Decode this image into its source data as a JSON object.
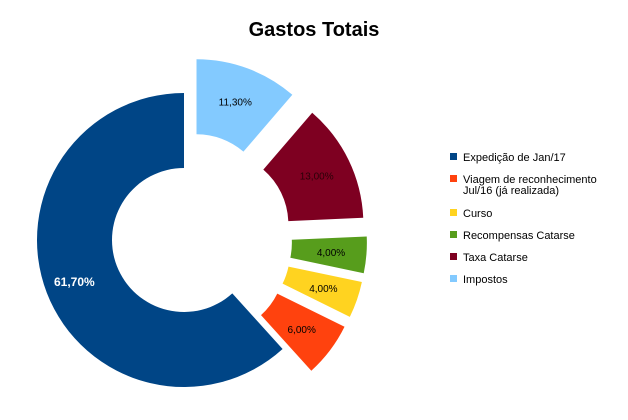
{
  "chart_data": {
    "type": "pie",
    "variant": "exploded-donut",
    "title": "Gastos Totais",
    "slices": [
      {
        "name": "Impostos",
        "value": 11.3,
        "label": "11,30%",
        "color": "#83caff"
      },
      {
        "name": "Taxa Catarse",
        "value": 13.0,
        "label": "13,00%",
        "color": "#7e0021"
      },
      {
        "name": "Recompensas Catarse",
        "value": 4.0,
        "label": "4,00%",
        "color": "#579d1c"
      },
      {
        "name": "Curso",
        "value": 4.0,
        "label": "4,00%",
        "color": "#ffd320"
      },
      {
        "name": "Viagem de reconhecimento Jul/16 (já realizada)",
        "value": 6.0,
        "label": "6,00%",
        "color": "#ff420e"
      },
      {
        "name": "Expedição de Jan/17",
        "value": 61.7,
        "label": "61,70%",
        "color": "#004586"
      }
    ],
    "legend": {
      "position": "right",
      "items": [
        {
          "lines": [
            "Expedição de Jan/17"
          ],
          "color": "#004586"
        },
        {
          "lines": [
            "Viagem de reconhecimento",
            "Jul/16 (já realizada)"
          ],
          "color": "#ff420e"
        },
        {
          "lines": [
            "Curso"
          ],
          "color": "#ffd320"
        },
        {
          "lines": [
            "Recompensas Catarse"
          ],
          "color": "#579d1c"
        },
        {
          "lines": [
            "Taxa Catarse"
          ],
          "color": "#7e0021"
        },
        {
          "lines": [
            "Impostos"
          ],
          "color": "#83caff"
        }
      ]
    }
  }
}
